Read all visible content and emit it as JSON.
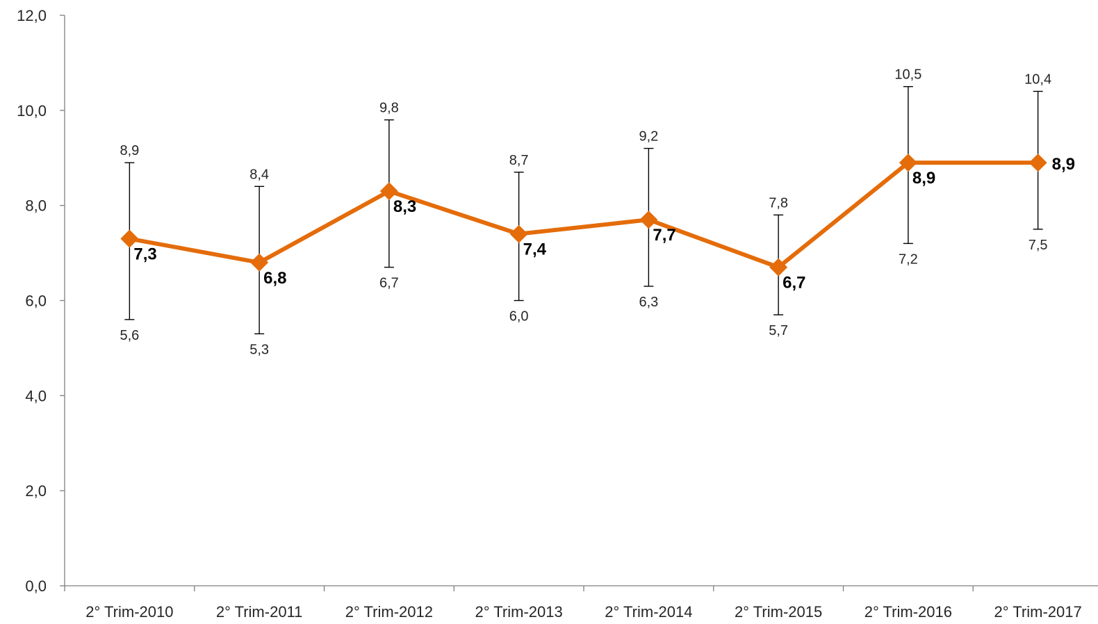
{
  "chart_data": {
    "type": "line",
    "title": "",
    "xlabel": "",
    "ylabel": "",
    "ylim": [
      0,
      12
    ],
    "y_ticks": [
      "0,0",
      "2,0",
      "4,0",
      "6,0",
      "8,0",
      "10,0",
      "12,0"
    ],
    "y_tick_values": [
      0,
      2,
      4,
      6,
      8,
      10,
      12
    ],
    "categories": [
      "2° Trim-2010",
      "2° Trim-2011",
      "2° Trim-2012",
      "2° Trim-2013",
      "2° Trim-2014",
      "2° Trim-2015",
      "2° Trim-2016",
      "2° Trim-2017"
    ],
    "grid": false,
    "legend": "none",
    "series": [
      {
        "values": [
          7.3,
          6.8,
          8.3,
          7.4,
          7.7,
          6.7,
          8.9,
          8.9
        ],
        "value_labels": [
          "7,3",
          "6,8",
          "8,3",
          "7,4",
          "7,7",
          "6,7",
          "8,9",
          "8,9"
        ],
        "color": "#E46C0A",
        "marker": "diamond",
        "error_upper": [
          8.9,
          8.4,
          9.8,
          8.7,
          9.2,
          7.8,
          10.5,
          10.4
        ],
        "error_upper_labels": [
          "8,9",
          "8,4",
          "9,8",
          "8,7",
          "9,2",
          "7,8",
          "10,5",
          "10,4"
        ],
        "error_lower": [
          5.6,
          5.3,
          6.7,
          6.0,
          6.3,
          5.7,
          7.2,
          7.5
        ],
        "error_lower_labels": [
          "5,6",
          "5,3",
          "6,7",
          "6,0",
          "6,3",
          "5,7",
          "7,2",
          "7,5"
        ]
      }
    ]
  }
}
